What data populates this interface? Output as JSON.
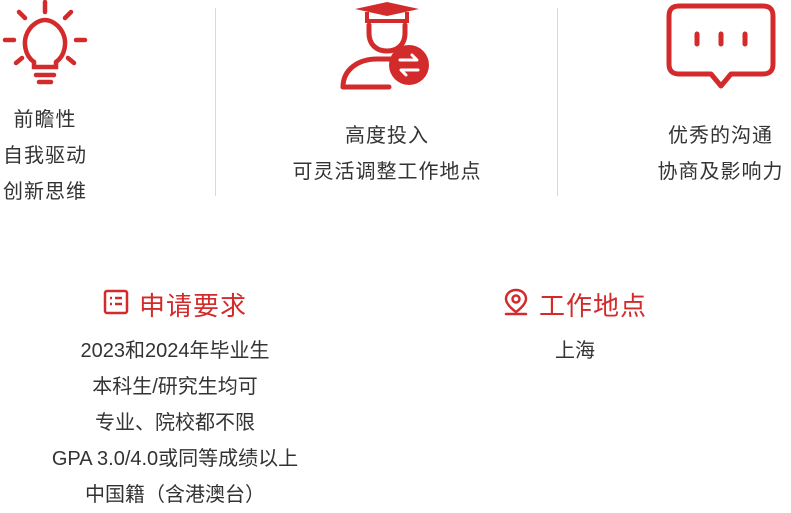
{
  "features": [
    {
      "icon": "lightbulb-icon",
      "lines": [
        "前瞻性",
        "自我驱动",
        "创新思维"
      ]
    },
    {
      "icon": "graduate-exchange-icon",
      "lines": [
        "高度投入",
        "可灵活调整工作地点"
      ]
    },
    {
      "icon": "chat-bubble-icon",
      "lines": [
        "优秀的沟通",
        "协商及影响力"
      ]
    }
  ],
  "requirements": {
    "icon": "checklist-icon",
    "title": "申请要求",
    "items": [
      "2023和2024年毕业生",
      "本科生/研究生均可",
      "专业、院校都不限",
      "GPA 3.0/4.0或同等成绩以上",
      "中国籍（含港澳台）"
    ]
  },
  "location": {
    "icon": "location-pin-icon",
    "title": "工作地点",
    "items": [
      "上海"
    ]
  },
  "colors": {
    "accent": "#d32b2b",
    "text": "#333333",
    "divider": "#d9d9d9"
  }
}
